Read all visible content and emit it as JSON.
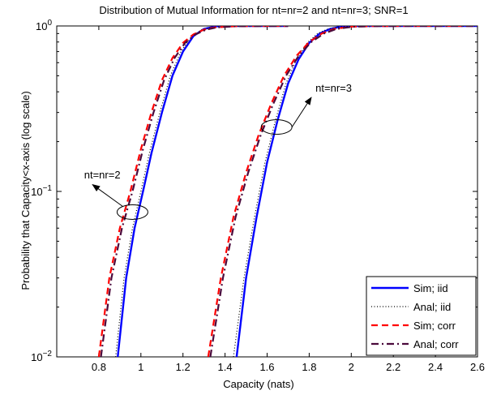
{
  "chart_data": {
    "type": "line",
    "title": "Distribution of Mutual Information for nt=nr=2 and nt=nr=3; SNR=1",
    "xlabel": "Capacity (nats)",
    "ylabel": "Probability that Capacity<x-axis (log scale)",
    "xlim": [
      0.6,
      2.6
    ],
    "ylim": [
      0.01,
      1
    ],
    "yscale": "log",
    "x_ticks": [
      0.8,
      1,
      1.2,
      1.4,
      1.6,
      1.8,
      2,
      2.2,
      2.4,
      2.6
    ],
    "x_tick_labels": [
      "0.8",
      "1",
      "1.2",
      "1.4",
      "1.6",
      "1.8",
      "2",
      "2.2",
      "2.4",
      "2.6"
    ],
    "y_ticks": [
      {
        "value": 0.01,
        "base": "10",
        "exp": "−2"
      },
      {
        "value": 0.1,
        "base": "10",
        "exp": "−1"
      },
      {
        "value": 1,
        "base": "10",
        "exp": "0"
      }
    ],
    "grid": false,
    "legend_position": "bottom-right",
    "series": [
      {
        "name": "Sim; iid",
        "color": "#0000ff",
        "style": "solid",
        "curves": [
          [
            [
              0.89,
              0.01
            ],
            [
              0.93,
              0.03
            ],
            [
              0.97,
              0.06
            ],
            [
              1.01,
              0.1
            ],
            [
              1.05,
              0.17
            ],
            [
              1.1,
              0.3
            ],
            [
              1.15,
              0.5
            ],
            [
              1.2,
              0.7
            ],
            [
              1.25,
              0.87
            ],
            [
              1.3,
              0.96
            ],
            [
              1.36,
              0.995
            ],
            [
              1.45,
              1.0
            ],
            [
              1.6,
              1.0
            ],
            [
              1.7,
              1.0
            ]
          ],
          [
            [
              1.455,
              0.01
            ],
            [
              1.5,
              0.03
            ],
            [
              1.55,
              0.07
            ],
            [
              1.6,
              0.15
            ],
            [
              1.65,
              0.27
            ],
            [
              1.7,
              0.45
            ],
            [
              1.75,
              0.63
            ],
            [
              1.8,
              0.79
            ],
            [
              1.85,
              0.9
            ],
            [
              1.9,
              0.96
            ],
            [
              1.95,
              0.99
            ],
            [
              2.0,
              0.998
            ],
            [
              2.1,
              1.0
            ],
            [
              2.6,
              1.0
            ]
          ]
        ]
      },
      {
        "name": "Anal; iid",
        "color": "#000000",
        "style": "dotted",
        "curves": [
          [
            [
              0.88,
              0.01
            ],
            [
              0.92,
              0.03
            ],
            [
              0.96,
              0.06
            ],
            [
              1.0,
              0.1
            ],
            [
              1.04,
              0.17
            ],
            [
              1.09,
              0.3
            ],
            [
              1.14,
              0.5
            ],
            [
              1.19,
              0.7
            ],
            [
              1.24,
              0.86
            ],
            [
              1.29,
              0.95
            ],
            [
              1.35,
              0.99
            ],
            [
              1.45,
              1.0
            ],
            [
              1.7,
              1.0
            ]
          ],
          [
            [
              1.44,
              0.01
            ],
            [
              1.49,
              0.03
            ],
            [
              1.54,
              0.07
            ],
            [
              1.59,
              0.15
            ],
            [
              1.64,
              0.27
            ],
            [
              1.69,
              0.45
            ],
            [
              1.74,
              0.63
            ],
            [
              1.79,
              0.79
            ],
            [
              1.84,
              0.9
            ],
            [
              1.89,
              0.96
            ],
            [
              1.95,
              0.99
            ],
            [
              2.05,
              1.0
            ],
            [
              2.6,
              1.0
            ]
          ]
        ]
      },
      {
        "name": "Sim; corr",
        "color": "#ff0000",
        "style": "dashed",
        "curves": [
          [
            [
              0.8,
              0.01
            ],
            [
              0.85,
              0.03
            ],
            [
              0.9,
              0.06
            ],
            [
              0.95,
              0.1
            ],
            [
              1.0,
              0.18
            ],
            [
              1.05,
              0.3
            ],
            [
              1.1,
              0.47
            ],
            [
              1.15,
              0.64
            ],
            [
              1.2,
              0.79
            ],
            [
              1.25,
              0.89
            ],
            [
              1.3,
              0.95
            ],
            [
              1.35,
              0.98
            ],
            [
              1.45,
              0.997
            ],
            [
              1.6,
              1.0
            ],
            [
              1.7,
              1.0
            ]
          ],
          [
            [
              1.32,
              0.01
            ],
            [
              1.38,
              0.03
            ],
            [
              1.44,
              0.07
            ],
            [
              1.5,
              0.13
            ],
            [
              1.56,
              0.22
            ],
            [
              1.62,
              0.34
            ],
            [
              1.68,
              0.5
            ],
            [
              1.74,
              0.66
            ],
            [
              1.8,
              0.8
            ],
            [
              1.86,
              0.9
            ],
            [
              1.92,
              0.96
            ],
            [
              2.0,
              0.99
            ],
            [
              2.1,
              0.998
            ],
            [
              2.3,
              1.0
            ],
            [
              2.6,
              1.0
            ]
          ]
        ]
      },
      {
        "name": "Anal; corr",
        "color": "#4b0a3c",
        "style": "dashdot",
        "curves": [
          [
            [
              0.81,
              0.01
            ],
            [
              0.86,
              0.03
            ],
            [
              0.91,
              0.06
            ],
            [
              0.96,
              0.1
            ],
            [
              1.01,
              0.18
            ],
            [
              1.06,
              0.3
            ],
            [
              1.11,
              0.47
            ],
            [
              1.16,
              0.64
            ],
            [
              1.21,
              0.79
            ],
            [
              1.26,
              0.89
            ],
            [
              1.31,
              0.95
            ],
            [
              1.36,
              0.98
            ],
            [
              1.46,
              0.997
            ],
            [
              1.7,
              1.0
            ]
          ],
          [
            [
              1.33,
              0.01
            ],
            [
              1.39,
              0.03
            ],
            [
              1.45,
              0.07
            ],
            [
              1.51,
              0.13
            ],
            [
              1.57,
              0.22
            ],
            [
              1.63,
              0.34
            ],
            [
              1.69,
              0.5
            ],
            [
              1.75,
              0.66
            ],
            [
              1.81,
              0.8
            ],
            [
              1.87,
              0.9
            ],
            [
              1.93,
              0.96
            ],
            [
              2.01,
              0.99
            ],
            [
              2.11,
              0.998
            ],
            [
              2.3,
              1.0
            ],
            [
              2.6,
              1.0
            ]
          ]
        ]
      }
    ],
    "annotations": [
      {
        "text": "nt=nr=2",
        "text_x": 0.73,
        "text_y": 0.12,
        "ellipse_x": 0.96,
        "ellipse_y": 0.075,
        "arrow_to_x": 0.77,
        "arrow_to_y": 0.11
      },
      {
        "text": "nt=nr=3",
        "text_x": 1.83,
        "text_y": 0.4,
        "ellipse_x": 1.645,
        "ellipse_y": 0.245,
        "arrow_to_x": 1.81,
        "arrow_to_y": 0.37
      }
    ]
  }
}
